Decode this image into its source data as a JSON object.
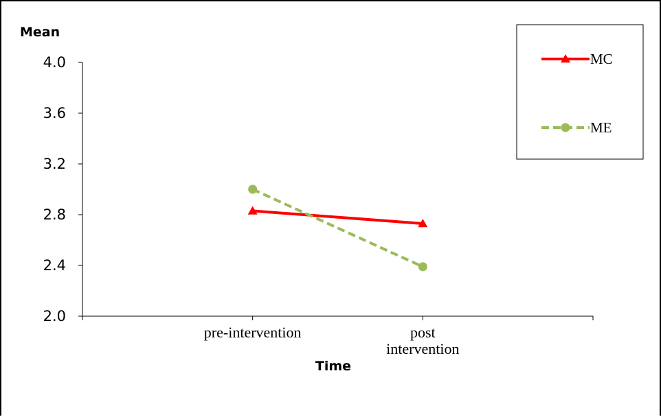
{
  "chart_data": {
    "type": "line",
    "title": "",
    "xlabel": "Time",
    "ylabel": "Mean",
    "categories": [
      [
        "pre-intervention"
      ],
      [
        "post",
        "intervention"
      ]
    ],
    "ylim": [
      2.0,
      4.0
    ],
    "yticks": [
      "2.0",
      "2.4",
      "2.8",
      "3.2",
      "3.6",
      "4.0"
    ],
    "grid": false,
    "legend_position": "top-right",
    "series": [
      {
        "name": "MC",
        "values": [
          2.83,
          2.73
        ],
        "color": "#ff0000",
        "marker": "triangle",
        "line_style": "solid"
      },
      {
        "name": "ME",
        "values": [
          3.0,
          2.39
        ],
        "color": "#9bbb59",
        "marker": "circle",
        "line_style": "dashed"
      }
    ]
  }
}
